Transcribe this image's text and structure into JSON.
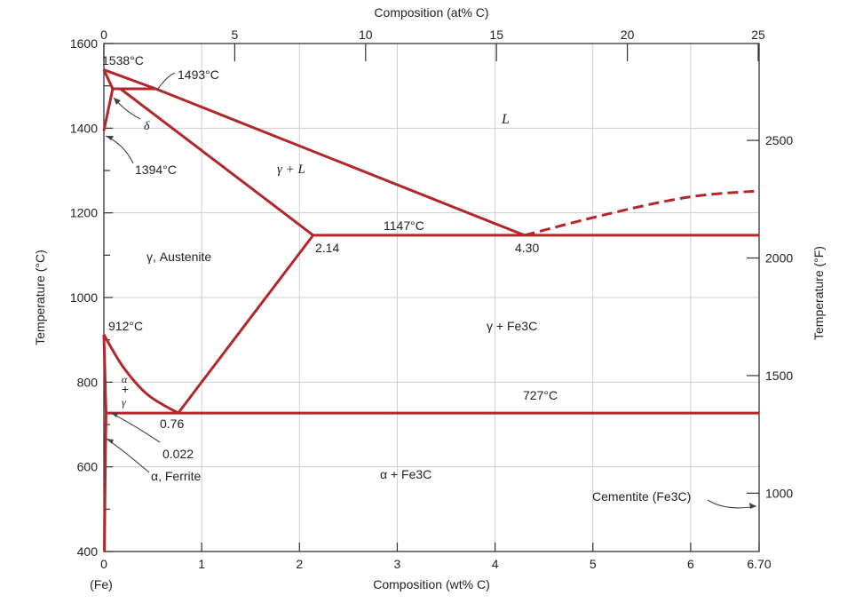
{
  "chart_data": {
    "type": "phase-diagram",
    "axes": {
      "top": {
        "label": "Composition (at% C)",
        "ticks": [
          "0",
          "5",
          "10",
          "15",
          "20",
          "25"
        ]
      },
      "bottom": {
        "label": "Composition (wt% C)",
        "ticks": [
          "0",
          "1",
          "2",
          "3",
          "4",
          "5",
          "6",
          "6.70"
        ],
        "origin_label": "(Fe)"
      },
      "left": {
        "label": "Temperature (°C)",
        "ticks": [
          "400",
          "600",
          "800",
          "1000",
          "1200",
          "1400",
          "1600"
        ],
        "range": [
          400,
          1600
        ]
      },
      "right": {
        "label": "Temperature (°F)",
        "ticks": [
          "1000",
          "1500",
          "2000",
          "2500"
        ]
      }
    },
    "grid": true,
    "temperature_labels": {
      "fe_melting": "1538°C",
      "peritectic": "1493°C",
      "delta_gamma": "1394°C",
      "eutectic": "1147°C",
      "alpha_gamma": "912°C",
      "eutectoid": "727°C"
    },
    "composition_labels": {
      "max_gamma": "2.14",
      "eutectic": "4.30",
      "eutectoid": "0.76",
      "max_alpha": "0.022"
    },
    "phase_labels": {
      "liquid": "L",
      "gamma_liquid": "γ + L",
      "delta": "δ",
      "austenite": "γ, Austenite",
      "gamma_cementite": "γ + Fe3C",
      "alpha_gamma_a": "α",
      "alpha_gamma_plus": "+",
      "alpha_gamma_g": "γ",
      "ferrite": "α, Ferrite",
      "alpha_cementite": "α + Fe3C",
      "cementite": "Cementite (Fe3C)"
    },
    "boundaries": {
      "liquidus": [
        [
          0,
          1538
        ],
        [
          0.53,
          1493
        ],
        [
          4.3,
          1147
        ]
      ],
      "liquidus_cementite": [
        [
          4.3,
          1147
        ],
        [
          5.2,
          1200
        ],
        [
          6.0,
          1238
        ],
        [
          6.7,
          1252
        ]
      ],
      "delta_field": [
        [
          0,
          1538
        ],
        [
          0.09,
          1493
        ],
        [
          0,
          1394
        ]
      ],
      "peritectic_line": [
        [
          0.09,
          1493
        ],
        [
          0.53,
          1493
        ]
      ],
      "gamma_solidus": [
        [
          0.17,
          1493
        ],
        [
          2.14,
          1147
        ]
      ],
      "gamma_solvus": [
        [
          2.14,
          1147
        ],
        [
          0.76,
          727
        ]
      ],
      "eutectic_line": [
        [
          2.14,
          1147
        ],
        [
          6.7,
          1147
        ]
      ],
      "alpha_gamma_upper": [
        [
          0,
          912
        ],
        [
          0.2,
          835
        ],
        [
          0.45,
          770
        ],
        [
          0.76,
          727
        ]
      ],
      "alpha_gamma_lower": [
        [
          0,
          912
        ],
        [
          0.022,
          727
        ]
      ],
      "eutectoid_line": [
        [
          0.022,
          727
        ],
        [
          6.7,
          727
        ]
      ],
      "alpha_solvus": [
        [
          0.022,
          727
        ],
        [
          0.012,
          550
        ],
        [
          0.005,
          400
        ]
      ]
    }
  }
}
